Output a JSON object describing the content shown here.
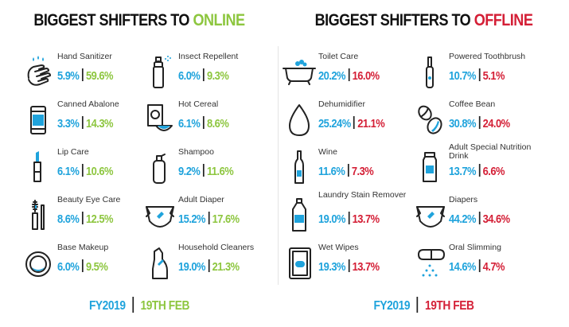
{
  "online": {
    "title_prefix": "BIGGEST SHIFTERS TO ",
    "title_highlight": "ONLINE",
    "items": [
      {
        "label": "Hand Sanitizer",
        "v1": "5.9%",
        "v2": "59.6%",
        "icon": "hand-sanitizer-icon"
      },
      {
        "label": "Insect Repellent",
        "v1": "6.0%",
        "v2": "9.3%",
        "icon": "insect-repellent-icon"
      },
      {
        "label": "Canned Abalone",
        "v1": "3.3%",
        "v2": "14.3%",
        "icon": "canned-abalone-icon"
      },
      {
        "label": "Hot Cereal",
        "v1": "6.1%",
        "v2": "8.6%",
        "icon": "hot-cereal-icon"
      },
      {
        "label": "Lip Care",
        "v1": "6.1%",
        "v2": "10.6%",
        "icon": "lip-care-icon"
      },
      {
        "label": "Shampoo",
        "v1": "9.2%",
        "v2": "11.6%",
        "icon": "shampoo-icon"
      },
      {
        "label": "Beauty Eye Care",
        "v1": "8.6%",
        "v2": "12.5%",
        "icon": "eye-care-icon"
      },
      {
        "label": "Adult Diaper",
        "v1": "15.2%",
        "v2": "17.6%",
        "icon": "adult-diaper-icon"
      },
      {
        "label": "Base Makeup",
        "v1": "6.0%",
        "v2": "9.5%",
        "icon": "compact-makeup-icon"
      },
      {
        "label": "Household Cleaners",
        "v1": "19.0%",
        "v2": "21.3%",
        "icon": "cleaner-bottle-icon"
      }
    ],
    "footer": {
      "fy": "FY2019",
      "date": "19TH FEB"
    }
  },
  "offline": {
    "title_prefix": "BIGGEST SHIFTERS TO ",
    "title_highlight": "OFFLINE",
    "items": [
      {
        "label": "Toilet Care",
        "v1": "20.2%",
        "v2": "16.0%",
        "icon": "bathtub-icon"
      },
      {
        "label": "Powered Toothbrush",
        "v1": "10.7%",
        "v2": "5.1%",
        "icon": "toothbrush-icon"
      },
      {
        "label": "Dehumidifier",
        "v1": "25.24%",
        "v2": "21.1%",
        "icon": "water-drop-icon"
      },
      {
        "label": "Coffee Bean",
        "v1": "30.8%",
        "v2": "24.0%",
        "icon": "coffee-bean-icon"
      },
      {
        "label": "Wine",
        "v1": "11.6%",
        "v2": "7.3%",
        "icon": "wine-bottle-icon"
      },
      {
        "label": "Adult Special Nutrition Drink",
        "v1": "13.7%",
        "v2": "6.6%",
        "icon": "nutrition-drink-icon"
      },
      {
        "label": "Laundry Stain Remover",
        "v1": "19.0%",
        "v2": "13.7%",
        "icon": "laundry-bottle-icon"
      },
      {
        "label": "Diapers",
        "v1": "44.2%",
        "v2": "34.6%",
        "icon": "diaper-icon"
      },
      {
        "label": "Wet Wipes",
        "v1": "19.3%",
        "v2": "13.7%",
        "icon": "wet-wipes-icon"
      },
      {
        "label": "Oral Slimming",
        "v1": "14.6%",
        "v2": "4.7%",
        "icon": "capsule-icon"
      }
    ],
    "footer": {
      "fy": "FY2019",
      "date": "19TH FEB"
    }
  },
  "colors": {
    "blue": "#1fa3dc",
    "green": "#8dc63f",
    "red": "#d41f36"
  }
}
